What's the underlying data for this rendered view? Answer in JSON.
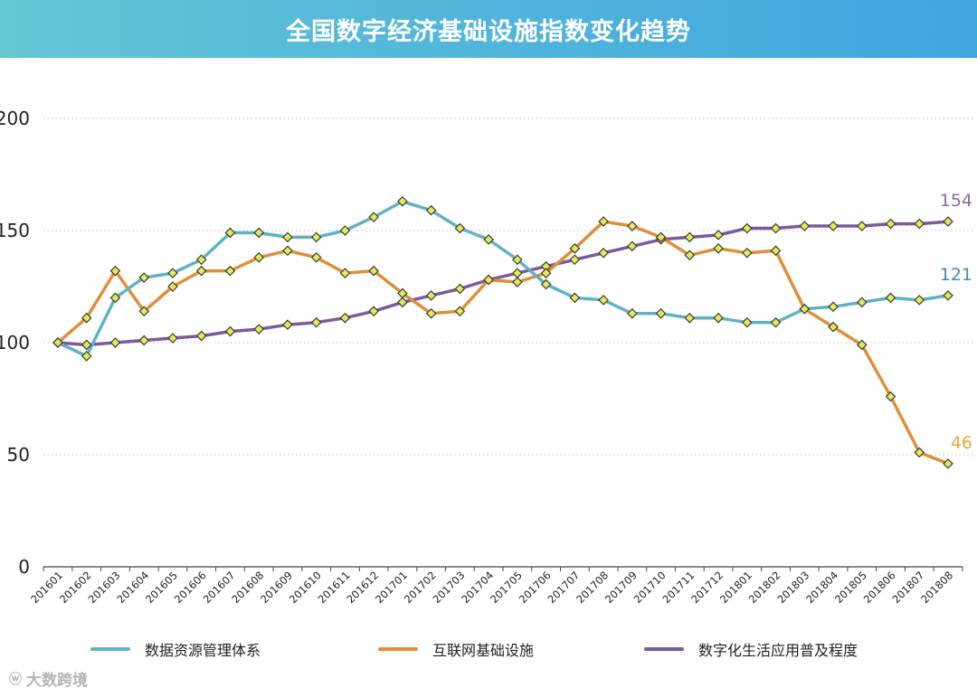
{
  "title": "全国数字经济基础设施指数变化趋势",
  "watermark": {
    "text": "大数跨境",
    "icon": "weibo-logo-icon"
  },
  "colors": {
    "series1": "#5fb3c7",
    "series2": "#e08e3a",
    "series3": "#7b5a9e",
    "marker_fill": "#e4ea55",
    "marker_stroke": "#3a3a3a",
    "grid": "#c9b3d8",
    "label_series1": "#3a8cb8",
    "label_series2": "#e9a640",
    "label_series3": "#8a6aa8"
  },
  "chart_data": {
    "type": "line",
    "x": [
      "201601",
      "201602",
      "201603",
      "201604",
      "201605",
      "201606",
      "201607",
      "201608",
      "201609",
      "201610",
      "201611",
      "201612",
      "201701",
      "201702",
      "201703",
      "201704",
      "201705",
      "201706",
      "201707",
      "201708",
      "201709",
      "201710",
      "201711",
      "201712",
      "201801",
      "201802",
      "201803",
      "201804",
      "201805",
      "201806",
      "201807",
      "201808"
    ],
    "yticks": [
      "0",
      "50",
      "100",
      "150",
      "200"
    ],
    "ylim": [
      0,
      200
    ],
    "grid": true,
    "legend_position": "bottom",
    "series": [
      {
        "name": "数据资源管理体系",
        "values": [
          100,
          94,
          120,
          129,
          131,
          137,
          149,
          149,
          147,
          147,
          150,
          156,
          163,
          159,
          151,
          146,
          137,
          126,
          120,
          119,
          113,
          113,
          111,
          111,
          109,
          109,
          115,
          116,
          118,
          120,
          119,
          121
        ]
      },
      {
        "name": "互联网基础设施",
        "values": [
          100,
          111,
          132,
          114,
          125,
          132,
          132,
          138,
          141,
          138,
          131,
          132,
          122,
          113,
          114,
          128,
          127,
          131,
          142,
          154,
          152,
          147,
          139,
          142,
          140,
          141,
          115,
          107,
          99,
          76,
          51,
          46
        ]
      },
      {
        "name": "数字化生活应用普及程度",
        "values": [
          100,
          99,
          100,
          101,
          102,
          103,
          105,
          106,
          108,
          109,
          111,
          114,
          118,
          121,
          124,
          128,
          131,
          134,
          137,
          140,
          143,
          146,
          147,
          148,
          151,
          151,
          152,
          152,
          152,
          153,
          153,
          154
        ]
      }
    ],
    "end_labels": [
      "121",
      "46",
      "154"
    ]
  }
}
